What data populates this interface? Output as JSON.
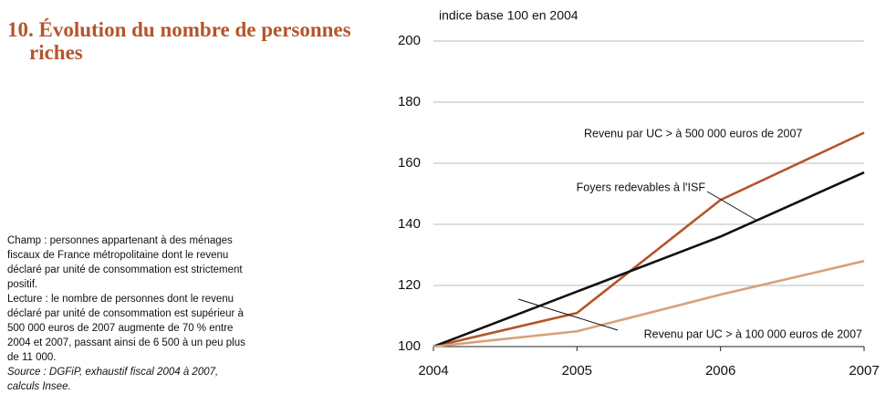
{
  "chart_data": {
    "type": "line",
    "title": "10. Évolution du nombre de personnes riches",
    "ylabel": "indice base 100 en 2004",
    "notes": [
      "Champ : personnes appartenant à des ménages fiscaux de France métropolitaine dont le revenu déclaré par unité de consommation est strictement positif.",
      "Lecture : le nombre de personnes dont le revenu déclaré par unité de consommation est supérieur à 500 000 euros de 2007 augmente de 70 % entre 2004 et 2007, passant ainsi de 6 500 à un peu plus de 11 000."
    ],
    "source": "Source : DGFiP, exhaustif fiscal 2004 à 2007, calculs Insee.",
    "x": [
      2004,
      2005,
      2006,
      2007
    ],
    "xlim": [
      2004,
      2007
    ],
    "xticks": [
      2004,
      2005,
      2006,
      2007
    ],
    "ylim": [
      100,
      200
    ],
    "yticks": [
      100,
      120,
      140,
      160,
      180,
      200
    ],
    "grid": true,
    "series": [
      {
        "name": "Revenu par UC > à 500 000 euros de 2007",
        "color": "#b5552b",
        "values": [
          100,
          111,
          148,
          170
        ]
      },
      {
        "name": "Foyers redevables à l'ISF",
        "color": "#111111",
        "values": [
          100,
          118,
          136,
          157
        ]
      },
      {
        "name": "Revenu par UC > à 100 000 euros de 2007",
        "color": "#d9a078",
        "values": [
          100,
          105,
          117,
          128
        ]
      }
    ]
  }
}
